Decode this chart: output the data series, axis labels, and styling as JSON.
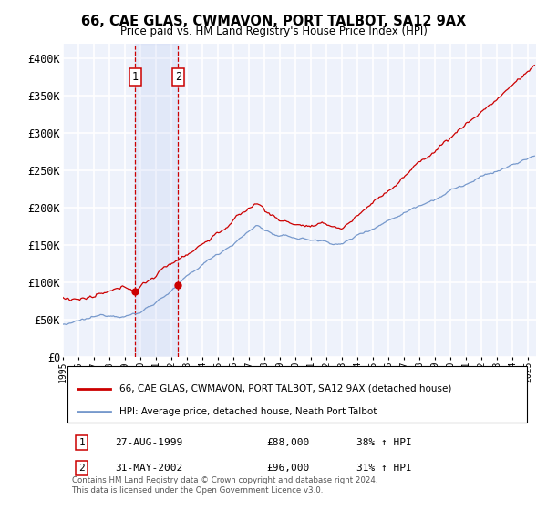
{
  "title": "66, CAE GLAS, CWMAVON, PORT TALBOT, SA12 9AX",
  "subtitle": "Price paid vs. HM Land Registry's House Price Index (HPI)",
  "ylim": [
    0,
    420000
  ],
  "xlim_start": 1995.0,
  "xlim_end": 2025.5,
  "transaction1": {
    "date_num": 1999.65,
    "price": 88000,
    "label": "1",
    "pct": "38% ↑ HPI",
    "date_str": "27-AUG-1999"
  },
  "transaction2": {
    "date_num": 2002.42,
    "price": 96000,
    "label": "2",
    "pct": "31% ↑ HPI",
    "date_str": "31-MAY-2002"
  },
  "line_color_red": "#cc0000",
  "line_color_blue": "#7799cc",
  "background_color": "#eef2fb",
  "grid_color": "#ffffff",
  "legend_label_red": "66, CAE GLAS, CWMAVON, PORT TALBOT, SA12 9AX (detached house)",
  "legend_label_blue": "HPI: Average price, detached house, Neath Port Talbot",
  "footnote": "Contains HM Land Registry data © Crown copyright and database right 2024.\nThis data is licensed under the Open Government Licence v3.0.",
  "xtick_years": [
    1995,
    1996,
    1997,
    1998,
    1999,
    2000,
    2001,
    2002,
    2003,
    2004,
    2005,
    2006,
    2007,
    2008,
    2009,
    2010,
    2011,
    2012,
    2013,
    2014,
    2015,
    2016,
    2017,
    2018,
    2019,
    2020,
    2021,
    2022,
    2023,
    2024,
    2025
  ]
}
